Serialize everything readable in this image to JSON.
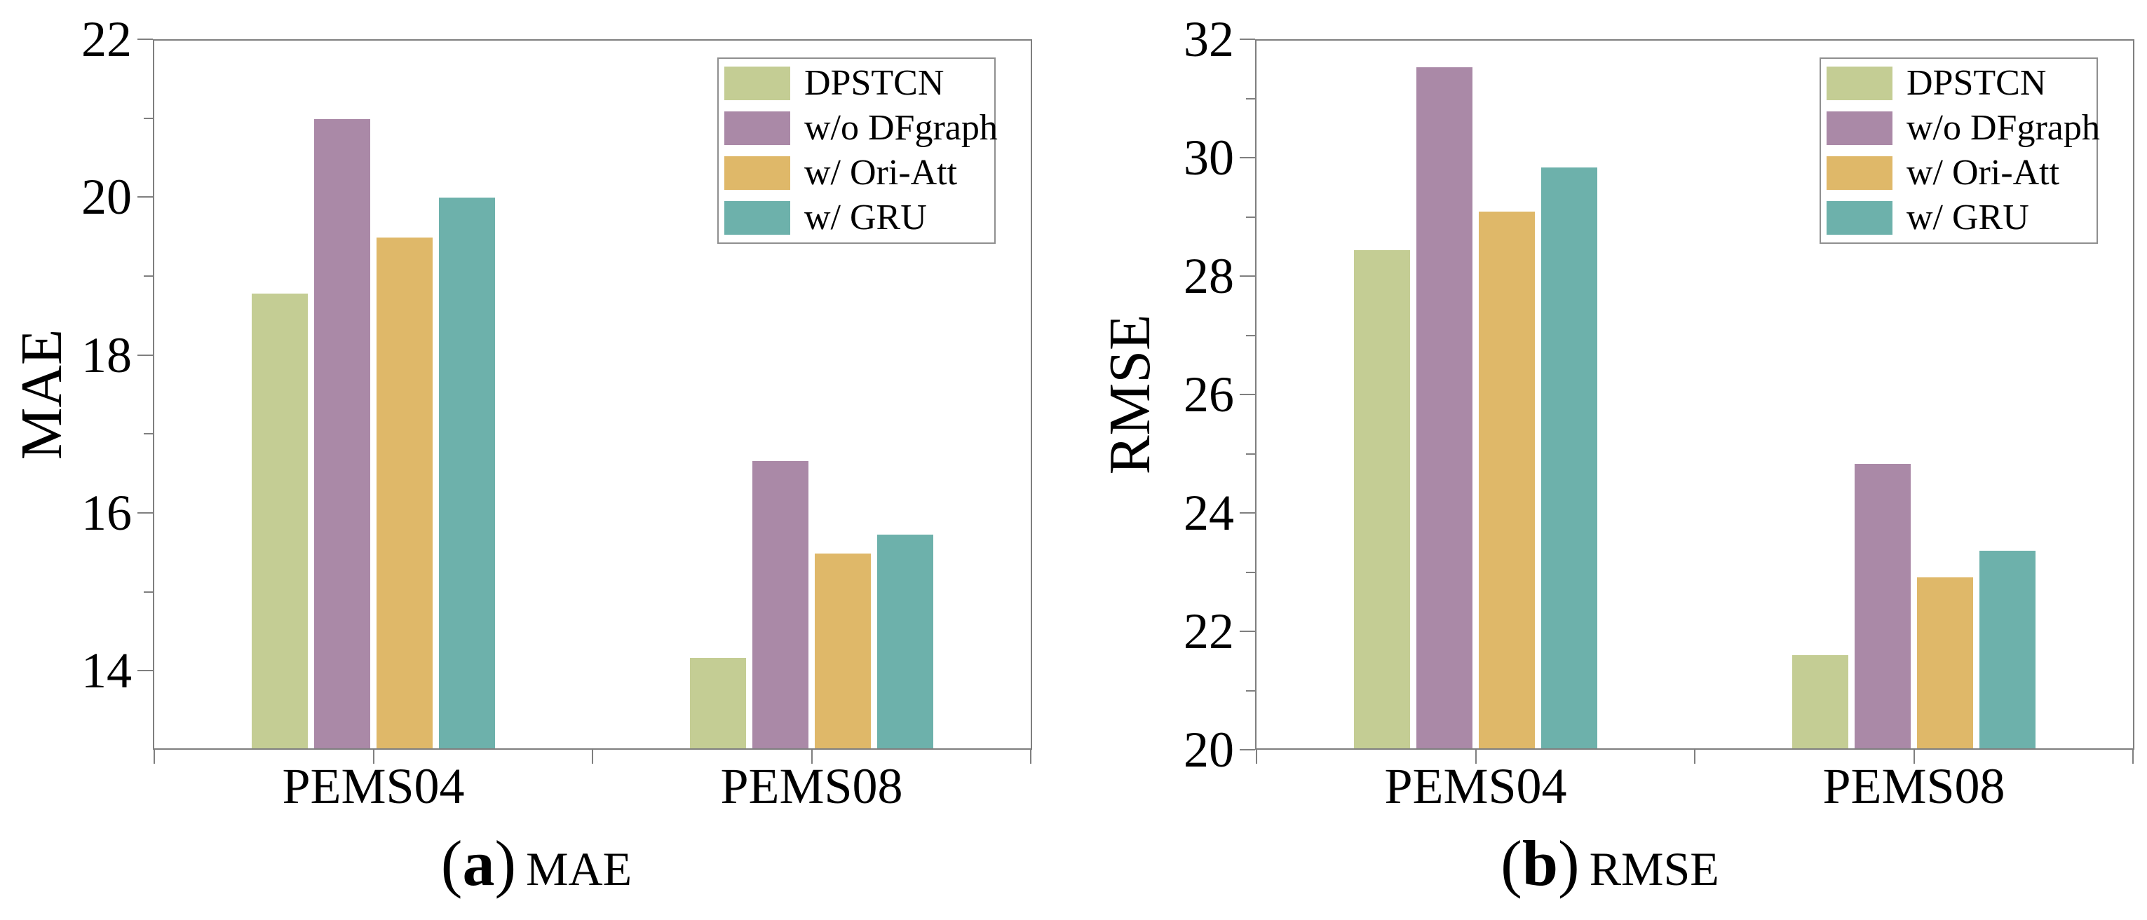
{
  "chart_data": [
    {
      "type": "bar",
      "panel": "a",
      "ylabel": "MAE",
      "caption": {
        "open": "(",
        "letter": "a",
        "close": ")",
        "label": "MAE"
      },
      "ylim": [
        13,
        22
      ],
      "yticks": [
        14,
        16,
        18,
        20,
        22
      ],
      "ytick_minor_step": 1,
      "grid": false,
      "legend_position": "top-right-inside",
      "categories": [
        "PEMS04",
        "PEMS08"
      ],
      "series": [
        {
          "name": "DPSTCN",
          "color": "#c4cd94",
          "values": [
            18.78,
            14.15
          ]
        },
        {
          "name": "w/o DFgraph",
          "color": "#aa89a7",
          "values": [
            21.0,
            16.65
          ]
        },
        {
          "name": "w/ Ori-Att",
          "color": "#dfb869",
          "values": [
            19.5,
            15.48
          ]
        },
        {
          "name": "w/ GRU",
          "color": "#6db1ab",
          "values": [
            20.0,
            15.72
          ]
        }
      ]
    },
    {
      "type": "bar",
      "panel": "b",
      "ylabel": "RMSE",
      "caption": {
        "open": "(",
        "letter": "b",
        "close": ")",
        "label": "RMSE"
      },
      "ylim": [
        20,
        32
      ],
      "yticks": [
        20,
        22,
        24,
        26,
        28,
        30,
        32
      ],
      "ytick_minor_step": 1,
      "grid": false,
      "legend_position": "top-right-inside",
      "categories": [
        "PEMS04",
        "PEMS08"
      ],
      "series": [
        {
          "name": "DPSTCN",
          "color": "#c4cd94",
          "values": [
            28.45,
            21.58
          ]
        },
        {
          "name": "w/o DFgraph",
          "color": "#aa89a7",
          "values": [
            31.55,
            24.82
          ]
        },
        {
          "name": "w/ Ori-Att",
          "color": "#dfb869",
          "values": [
            29.1,
            22.9
          ]
        },
        {
          "name": "w/ GRU",
          "color": "#6db1ab",
          "values": [
            29.85,
            23.35
          ]
        }
      ]
    }
  ],
  "styles": {
    "frame_color": "#7f7f7f",
    "text_color": "#000000"
  }
}
